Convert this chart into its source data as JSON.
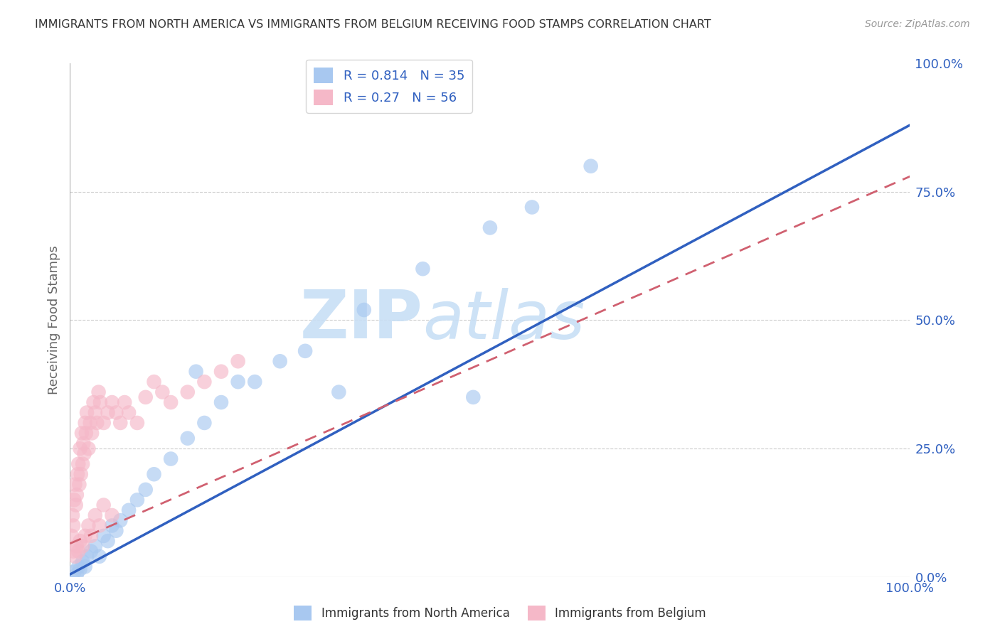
{
  "title": "IMMIGRANTS FROM NORTH AMERICA VS IMMIGRANTS FROM BELGIUM RECEIVING FOOD STAMPS CORRELATION CHART",
  "source": "Source: ZipAtlas.com",
  "ylabel": "Receiving Food Stamps",
  "R_blue": 0.814,
  "N_blue": 35,
  "R_pink": 0.27,
  "N_pink": 56,
  "blue_color": "#a8c8f0",
  "pink_color": "#f5b8c8",
  "line_blue": "#3060c0",
  "line_pink": "#d06070",
  "watermark_ZIP": "ZIP",
  "watermark_atlas": "atlas",
  "watermark_color": "#c8dff5",
  "axis_label_color": "#3060c0",
  "title_color": "#333333",
  "legend_label_blue": "Immigrants from North America",
  "legend_label_pink": "Immigrants from Belgium",
  "ytick_labels": [
    "0.0%",
    "25.0%",
    "50.0%",
    "75.0%",
    "100.0%"
  ],
  "ytick_values": [
    0,
    0.25,
    0.5,
    0.75,
    1.0
  ],
  "xtick_labels": [
    "0.0%",
    "100.0%"
  ],
  "xtick_values": [
    0,
    1.0
  ],
  "blue_line_x0": 0.0,
  "blue_line_y0": 0.005,
  "blue_line_x1": 1.0,
  "blue_line_y1": 0.88,
  "pink_line_x0": 0.0,
  "pink_line_y0": 0.065,
  "pink_line_x1": 1.0,
  "pink_line_y1": 0.78,
  "blue_x": [
    0.005,
    0.008,
    0.01,
    0.012,
    0.015,
    0.018,
    0.02,
    0.025,
    0.03,
    0.035,
    0.04,
    0.045,
    0.05,
    0.055,
    0.06,
    0.07,
    0.08,
    0.09,
    0.1,
    0.12,
    0.14,
    0.16,
    0.18,
    0.22,
    0.28,
    0.35,
    0.42,
    0.5,
    0.55,
    0.62,
    0.15,
    0.2,
    0.25,
    0.32,
    0.48
  ],
  "blue_y": [
    0.01,
    0.005,
    0.02,
    0.015,
    0.03,
    0.02,
    0.04,
    0.05,
    0.06,
    0.04,
    0.08,
    0.07,
    0.1,
    0.09,
    0.11,
    0.13,
    0.15,
    0.17,
    0.2,
    0.23,
    0.27,
    0.3,
    0.34,
    0.38,
    0.44,
    0.52,
    0.6,
    0.68,
    0.72,
    0.8,
    0.4,
    0.38,
    0.42,
    0.36,
    0.35
  ],
  "pink_x": [
    0.002,
    0.003,
    0.004,
    0.005,
    0.006,
    0.007,
    0.008,
    0.009,
    0.01,
    0.011,
    0.012,
    0.013,
    0.014,
    0.015,
    0.016,
    0.017,
    0.018,
    0.019,
    0.02,
    0.022,
    0.024,
    0.026,
    0.028,
    0.03,
    0.032,
    0.034,
    0.036,
    0.04,
    0.045,
    0.05,
    0.055,
    0.06,
    0.065,
    0.07,
    0.08,
    0.09,
    0.1,
    0.11,
    0.12,
    0.14,
    0.16,
    0.18,
    0.2,
    0.004,
    0.006,
    0.008,
    0.01,
    0.012,
    0.015,
    0.018,
    0.022,
    0.025,
    0.03,
    0.035,
    0.04,
    0.05
  ],
  "pink_y": [
    0.08,
    0.12,
    0.1,
    0.15,
    0.18,
    0.14,
    0.16,
    0.2,
    0.22,
    0.18,
    0.25,
    0.2,
    0.28,
    0.22,
    0.26,
    0.24,
    0.3,
    0.28,
    0.32,
    0.25,
    0.3,
    0.28,
    0.34,
    0.32,
    0.3,
    0.36,
    0.34,
    0.3,
    0.32,
    0.34,
    0.32,
    0.3,
    0.34,
    0.32,
    0.3,
    0.35,
    0.38,
    0.36,
    0.34,
    0.36,
    0.38,
    0.4,
    0.42,
    0.05,
    0.04,
    0.06,
    0.05,
    0.07,
    0.06,
    0.08,
    0.1,
    0.08,
    0.12,
    0.1,
    0.14,
    0.12
  ]
}
